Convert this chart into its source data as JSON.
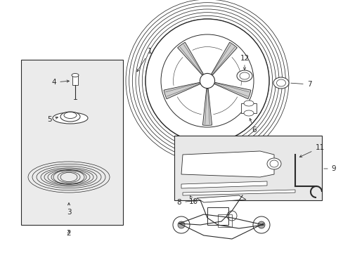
{
  "bg_color": "#ffffff",
  "line_color": "#2a2a2a",
  "box_fill": "#ebebeb",
  "fig_width": 4.89,
  "fig_height": 3.6,
  "dpi": 100
}
